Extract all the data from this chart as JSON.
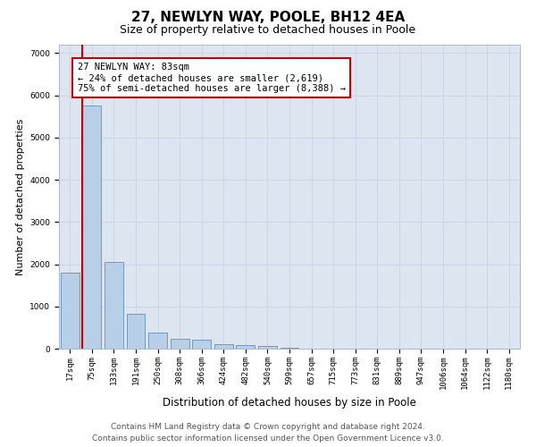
{
  "title": "27, NEWLYN WAY, POOLE, BH12 4EA",
  "subtitle": "Size of property relative to detached houses in Poole",
  "xlabel": "Distribution of detached houses by size in Poole",
  "ylabel": "Number of detached properties",
  "categories": [
    "17sqm",
    "75sqm",
    "133sqm",
    "191sqm",
    "250sqm",
    "308sqm",
    "366sqm",
    "424sqm",
    "482sqm",
    "540sqm",
    "599sqm",
    "657sqm",
    "715sqm",
    "773sqm",
    "831sqm",
    "889sqm",
    "947sqm",
    "1006sqm",
    "1064sqm",
    "1122sqm",
    "1180sqm"
  ],
  "values": [
    1800,
    5750,
    2060,
    830,
    380,
    240,
    220,
    110,
    80,
    55,
    30,
    10,
    5,
    0,
    0,
    0,
    0,
    0,
    0,
    0,
    0
  ],
  "bar_color": "#b8cfe8",
  "bar_edge_color": "#6090c0",
  "vline_color": "#cc0000",
  "annotation_text": "27 NEWLYN WAY: 83sqm\n← 24% of detached houses are smaller (2,619)\n75% of semi-detached houses are larger (8,388) →",
  "annotation_box_facecolor": "#ffffff",
  "annotation_box_edgecolor": "#cc0000",
  "ylim": [
    0,
    7200
  ],
  "yticks": [
    0,
    1000,
    2000,
    3000,
    4000,
    5000,
    6000,
    7000
  ],
  "grid_color": "#ccd5e8",
  "background_color": "#dde5f0",
  "footer_line1": "Contains HM Land Registry data © Crown copyright and database right 2024.",
  "footer_line2": "Contains public sector information licensed under the Open Government Licence v3.0.",
  "title_fontsize": 11,
  "subtitle_fontsize": 9,
  "xlabel_fontsize": 8.5,
  "ylabel_fontsize": 8,
  "tick_fontsize": 6.5,
  "annotation_fontsize": 7.5,
  "footer_fontsize": 6.5
}
